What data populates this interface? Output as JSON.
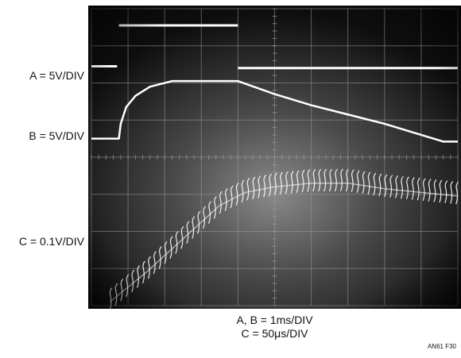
{
  "channel_labels": {
    "a": "A = 5V/DIV",
    "b": "B = 5V/DIV",
    "c": "C = 0.1V/DIV"
  },
  "timebase": {
    "ab": "A, B = 1ms/DIV",
    "c": "C = 50μs/DIV"
  },
  "figure_id": "AN61 F30",
  "colors": {
    "screen_dark": "#0d0d0d",
    "screen_glow": "#8a8a8a",
    "trace": "#ffffff",
    "graticule": "#9a9a9a",
    "page_background": "#ffffff"
  },
  "chart_data": {
    "type": "line",
    "grid": true,
    "graticule_divisions": {
      "x": 10,
      "y": 8
    },
    "x_unit_divisions": [
      0,
      10
    ],
    "series": [
      {
        "channel": "A",
        "scale": "5V/DIV",
        "segments": [
          {
            "x": [
              0,
              0.7
            ],
            "y": [
              6.45,
              6.45
            ]
          },
          {
            "x": [
              0.75,
              4.0
            ],
            "y": [
              7.55,
              7.55
            ]
          },
          {
            "x": [
              4.0,
              10.0
            ],
            "y": [
              6.4,
              6.4
            ]
          }
        ]
      },
      {
        "channel": "B",
        "scale": "5V/DIV",
        "x": [
          0,
          0.75,
          0.8,
          0.95,
          1.2,
          1.6,
          2.2,
          4.0,
          5.0,
          6.0,
          7.0,
          8.0,
          9.0,
          9.6,
          10.0
        ],
        "y": [
          4.5,
          4.5,
          4.9,
          5.35,
          5.65,
          5.9,
          6.05,
          6.05,
          5.7,
          5.4,
          5.15,
          4.9,
          4.6,
          4.42,
          4.42
        ]
      },
      {
        "channel": "C",
        "scale": "0.1V/DIV",
        "x": [
          0.5,
          1.5,
          2.5,
          3.5,
          4.2,
          5.0,
          6.0,
          7.0,
          8.0,
          9.0,
          10.0
        ],
        "y": [
          0.1,
          0.9,
          1.8,
          2.7,
          3.05,
          3.2,
          3.3,
          3.3,
          3.15,
          3.05,
          2.95
        ]
      }
    ]
  }
}
